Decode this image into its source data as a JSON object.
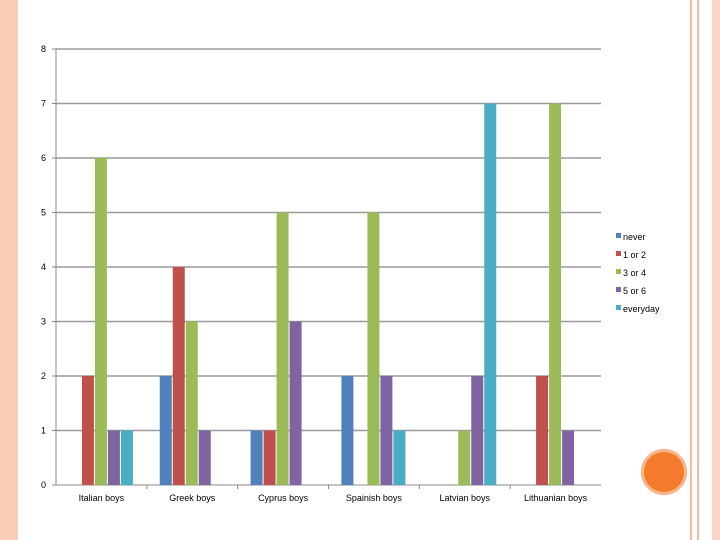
{
  "chart_data": {
    "type": "bar",
    "title": "",
    "xlabel": "",
    "ylabel": "",
    "ylim": [
      0,
      8
    ],
    "yticks": [
      0,
      1,
      2,
      3,
      4,
      5,
      6,
      7,
      8
    ],
    "grid": true,
    "legend_position": "right",
    "categories": [
      "Italian boys",
      "Greek boys",
      "Cyprus boys",
      "Spainish boys",
      "Latvian boys",
      "Lithuanian boys"
    ],
    "series": [
      {
        "name": "never",
        "color": "#4f81bd",
        "values": [
          0,
          2,
          1,
          2,
          0,
          0
        ]
      },
      {
        "name": "1 or 2",
        "color": "#c0504d",
        "values": [
          2,
          4,
          1,
          0,
          0,
          2
        ]
      },
      {
        "name": "3 or 4",
        "color": "#9bbb59",
        "values": [
          6,
          3,
          5,
          5,
          1,
          7
        ]
      },
      {
        "name": "5 or 6",
        "color": "#8064a2",
        "values": [
          1,
          1,
          3,
          2,
          2,
          1
        ]
      },
      {
        "name": "everyday",
        "color": "#4bacc6",
        "values": [
          1,
          0,
          0,
          1,
          7,
          0
        ]
      }
    ]
  },
  "decor": {
    "frame_color": "#f8cdb8",
    "circle_color": "#f47a2c"
  }
}
